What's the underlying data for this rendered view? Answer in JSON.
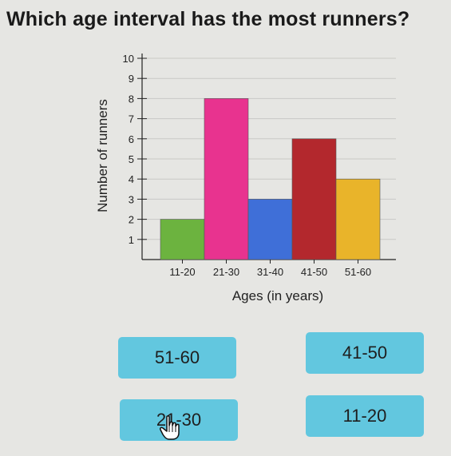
{
  "question": "Which age interval has the most runners?",
  "chart_data": {
    "type": "bar",
    "title": "",
    "xlabel": "Ages (in years)",
    "ylabel": "Number of runners",
    "categories": [
      "11-20",
      "21-30",
      "31-40",
      "41-50",
      "51-60"
    ],
    "values": [
      2,
      8,
      3,
      6,
      4
    ],
    "colors": [
      "#6cb33f",
      "#e8338f",
      "#3f6fd8",
      "#b3282d",
      "#e9b42a"
    ],
    "yticks": [
      "1",
      "2",
      "3",
      "4",
      "5",
      "6",
      "7",
      "8",
      "9",
      "10"
    ],
    "ylim": [
      0,
      10
    ],
    "grid": true
  },
  "choices": [
    {
      "label": "51-60"
    },
    {
      "label": "41-50"
    },
    {
      "label": "21-30"
    },
    {
      "label": "11-20"
    }
  ],
  "cursor_icon": "hand-pointer-icon"
}
